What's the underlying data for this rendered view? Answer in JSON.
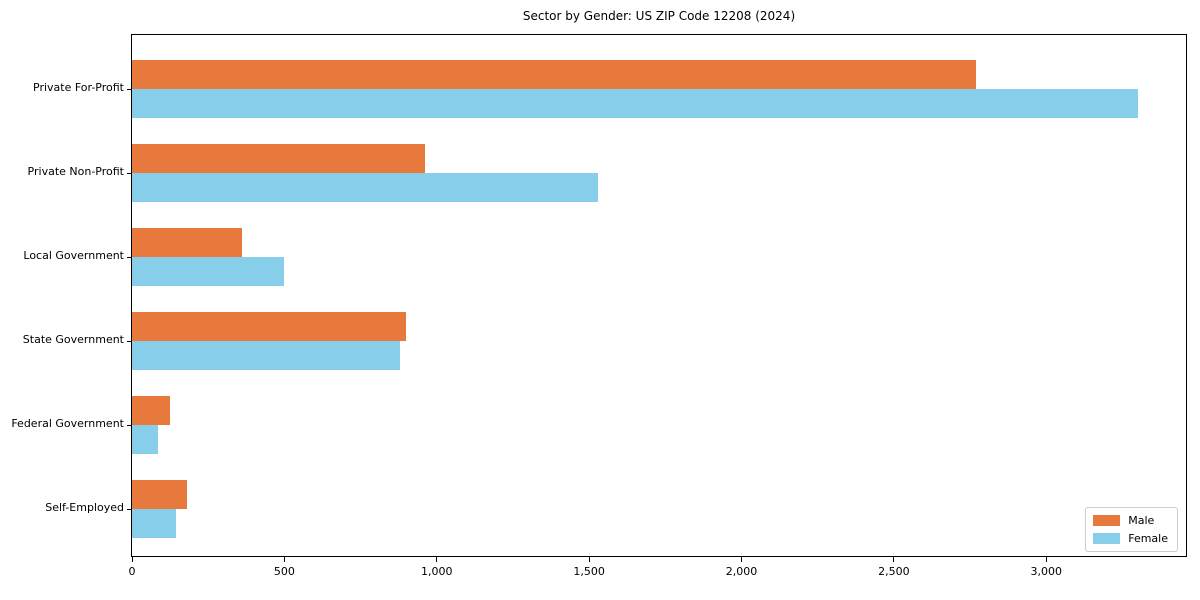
{
  "chart_data": {
    "type": "bar",
    "orientation": "horizontal",
    "title": "Sector by Gender: US ZIP Code 12208 (2024)",
    "categories": [
      "Private For-Profit",
      "Private Non-Profit",
      "Local Government",
      "State Government",
      "Federal Government",
      "Self-Employed"
    ],
    "series": [
      {
        "name": "Male",
        "color": "#E8793C",
        "values": [
          2770,
          960,
          360,
          900,
          125,
          180
        ]
      },
      {
        "name": "Female",
        "color": "#87CEEB",
        "values": [
          3300,
          1530,
          500,
          880,
          85,
          145
        ]
      }
    ],
    "xlabel": "",
    "ylabel": "",
    "xlim": [
      0,
      3465
    ],
    "xticks": [
      0,
      500,
      1000,
      1500,
      2000,
      2500,
      3000
    ],
    "xtick_labels": [
      "0",
      "500",
      "1,000",
      "1,500",
      "2,000",
      "2,500",
      "3,000"
    ],
    "grid": false,
    "legend_position": "lower right",
    "frame_color": "#000000",
    "background_color": "#ffffff"
  }
}
